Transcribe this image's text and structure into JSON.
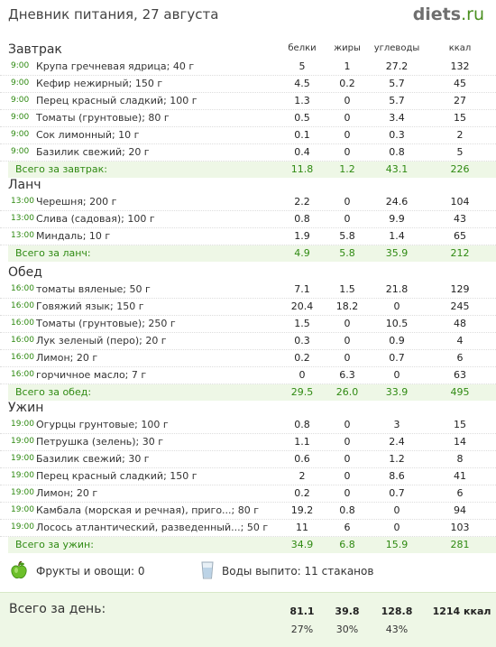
{
  "header": {
    "title": "Дневник питания, 27 августа",
    "logo_name": "diets",
    "logo_tld": ".ru"
  },
  "columns": {
    "protein": "белки",
    "fat": "жиры",
    "carbs": "углеводы",
    "kcal": "ккал"
  },
  "meals": [
    {
      "name": "Завтрак",
      "items": [
        {
          "time": "9:00",
          "food": "Крупа гречневая ядрица; 40 г",
          "protein": "5",
          "fat": "1",
          "carbs": "27.2",
          "kcal": "132"
        },
        {
          "time": "9:00",
          "food": "Кефир нежирный; 150 г",
          "protein": "4.5",
          "fat": "0.2",
          "carbs": "5.7",
          "kcal": "45"
        },
        {
          "time": "9:00",
          "food": "Перец красный сладкий; 100 г",
          "protein": "1.3",
          "fat": "0",
          "carbs": "5.7",
          "kcal": "27"
        },
        {
          "time": "9:00",
          "food": "Томаты (грунтовые); 80 г",
          "protein": "0.5",
          "fat": "0",
          "carbs": "3.4",
          "kcal": "15"
        },
        {
          "time": "9:00",
          "food": "Сок лимонный; 10 г",
          "protein": "0.1",
          "fat": "0",
          "carbs": "0.3",
          "kcal": "2"
        },
        {
          "time": "9:00",
          "food": "Базилик свежий; 20 г",
          "protein": "0.4",
          "fat": "0",
          "carbs": "0.8",
          "kcal": "5"
        }
      ],
      "total": {
        "label": "Всего за завтрак:",
        "protein": "11.8",
        "fat": "1.2",
        "carbs": "43.1",
        "kcal": "226"
      }
    },
    {
      "name": "Ланч",
      "items": [
        {
          "time": "13:00",
          "food": "Черешня; 200 г",
          "protein": "2.2",
          "fat": "0",
          "carbs": "24.6",
          "kcal": "104"
        },
        {
          "time": "13:00",
          "food": "Слива (садовая); 100 г",
          "protein": "0.8",
          "fat": "0",
          "carbs": "9.9",
          "kcal": "43"
        },
        {
          "time": "13:00",
          "food": "Миндаль; 10 г",
          "protein": "1.9",
          "fat": "5.8",
          "carbs": "1.4",
          "kcal": "65"
        }
      ],
      "total": {
        "label": "Всего за ланч:",
        "protein": "4.9",
        "fat": "5.8",
        "carbs": "35.9",
        "kcal": "212"
      }
    },
    {
      "name": "Обед",
      "items": [
        {
          "time": "16:00",
          "food": "томаты вяленые; 50 г",
          "protein": "7.1",
          "fat": "1.5",
          "carbs": "21.8",
          "kcal": "129"
        },
        {
          "time": "16:00",
          "food": "Говяжий язык; 150 г",
          "protein": "20.4",
          "fat": "18.2",
          "carbs": "0",
          "kcal": "245"
        },
        {
          "time": "16:00",
          "food": "Томаты (грунтовые); 250 г",
          "protein": "1.5",
          "fat": "0",
          "carbs": "10.5",
          "kcal": "48"
        },
        {
          "time": "16:00",
          "food": "Лук зеленый (перо); 20 г",
          "protein": "0.3",
          "fat": "0",
          "carbs": "0.9",
          "kcal": "4"
        },
        {
          "time": "16:00",
          "food": "Лимон; 20 г",
          "protein": "0.2",
          "fat": "0",
          "carbs": "0.7",
          "kcal": "6"
        },
        {
          "time": "16:00",
          "food": "горчичное масло; 7 г",
          "protein": "0",
          "fat": "6.3",
          "carbs": "0",
          "kcal": "63"
        }
      ],
      "total": {
        "label": "Всего за обед:",
        "protein": "29.5",
        "fat": "26.0",
        "carbs": "33.9",
        "kcal": "495"
      }
    },
    {
      "name": "Ужин",
      "items": [
        {
          "time": "19:00",
          "food": "Огурцы грунтовые; 100 г",
          "protein": "0.8",
          "fat": "0",
          "carbs": "3",
          "kcal": "15"
        },
        {
          "time": "19:00",
          "food": "Петрушка (зелень); 30 г",
          "protein": "1.1",
          "fat": "0",
          "carbs": "2.4",
          "kcal": "14"
        },
        {
          "time": "19:00",
          "food": "Базилик свежий; 30 г",
          "protein": "0.6",
          "fat": "0",
          "carbs": "1.2",
          "kcal": "8"
        },
        {
          "time": "19:00",
          "food": "Перец красный сладкий; 150 г",
          "protein": "2",
          "fat": "0",
          "carbs": "8.6",
          "kcal": "41"
        },
        {
          "time": "19:00",
          "food": "Лимон; 20 г",
          "protein": "0.2",
          "fat": "0",
          "carbs": "0.7",
          "kcal": "6"
        },
        {
          "time": "19:00",
          "food": "Камбала (морская и речная), приго...; 80 г",
          "protein": "19.2",
          "fat": "0.8",
          "carbs": "0",
          "kcal": "94"
        },
        {
          "time": "19:00",
          "food": "Лосось атлантический, разведенный...; 50 г",
          "protein": "11",
          "fat": "6",
          "carbs": "0",
          "kcal": "103"
        }
      ],
      "total": {
        "label": "Всего за ужин:",
        "protein": "34.9",
        "fat": "6.8",
        "carbs": "15.9",
        "kcal": "281"
      }
    }
  ],
  "extras": {
    "fruits": "Фрукты и овощи: 0",
    "water": "Воды выпито: 11 стаканов"
  },
  "day": {
    "label": "Всего за день:",
    "protein": "81.1",
    "fat": "39.8",
    "carbs": "128.8",
    "kcal": "1214 ккал",
    "protein_pct": "27%",
    "fat_pct": "30%",
    "carbs_pct": "43%"
  },
  "colors": {
    "accent": "#2f8a12",
    "total_bg": "#eef7e6"
  }
}
